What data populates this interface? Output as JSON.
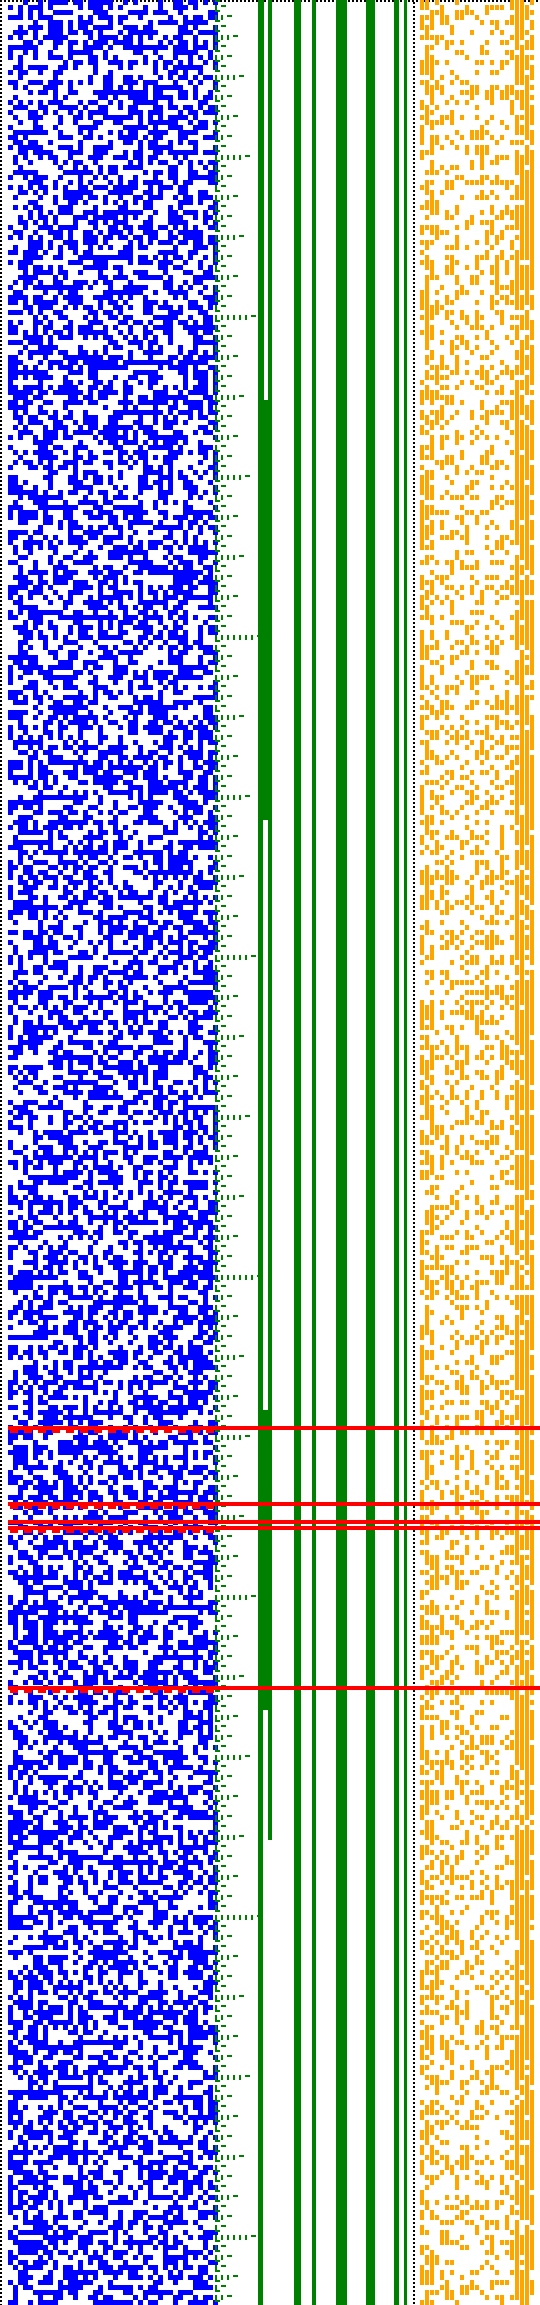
{
  "colors": {
    "background": "#ffffff",
    "border_dots": "#000000",
    "bits": "#0000ff",
    "tree": "#008000",
    "signal": "#ffa500",
    "marker": "#ff0000"
  },
  "visualization": {
    "kind": "bit-pattern plot with binary-counter bars",
    "regions": [
      "border-dots",
      "bit-grid",
      "counter-tree",
      "counter-bars",
      "signal-grid",
      "marker-lines"
    ],
    "highlighted_rows_count": 5,
    "text_labels": []
  }
}
